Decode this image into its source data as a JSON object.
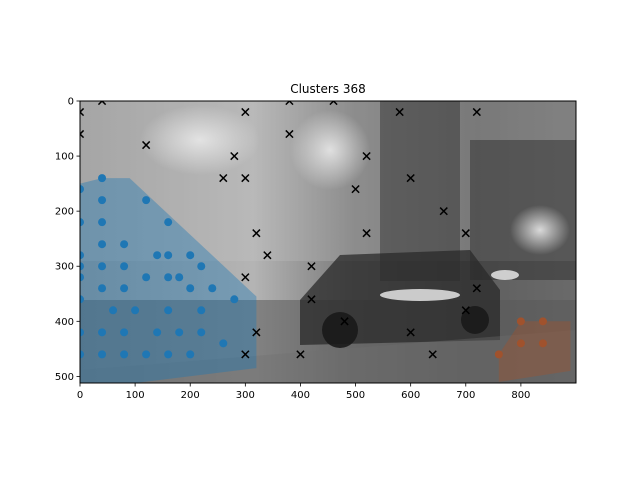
{
  "chart_data": {
    "type": "scatter",
    "title": "Clusters 368",
    "xlabel": "",
    "ylabel": "",
    "xlim": [
      0,
      900
    ],
    "ylim": [
      512,
      0
    ],
    "y_axis_inverted": true,
    "background": "grayscale photo of a city street at night with a car",
    "x_ticks": [
      0,
      100,
      200,
      300,
      400,
      500,
      600,
      700,
      800
    ],
    "y_ticks": [
      0,
      100,
      200,
      300,
      400,
      500
    ],
    "grid": false,
    "legend": "none",
    "series": [
      {
        "marker": "circle",
        "color": "#1f77b4",
        "points": [
          [
            40,
            140
          ],
          [
            0,
            160
          ],
          [
            40,
            180
          ],
          [
            120,
            180
          ],
          [
            0,
            220
          ],
          [
            40,
            220
          ],
          [
            160,
            220
          ],
          [
            40,
            260
          ],
          [
            80,
            260
          ],
          [
            0,
            280
          ],
          [
            140,
            280
          ],
          [
            160,
            280
          ],
          [
            200,
            280
          ],
          [
            0,
            300
          ],
          [
            40,
            300
          ],
          [
            80,
            300
          ],
          [
            220,
            300
          ],
          [
            0,
            320
          ],
          [
            120,
            320
          ],
          [
            160,
            320
          ],
          [
            180,
            320
          ],
          [
            40,
            340
          ],
          [
            80,
            340
          ],
          [
            200,
            340
          ],
          [
            240,
            340
          ],
          [
            0,
            360
          ],
          [
            280,
            360
          ],
          [
            60,
            380
          ],
          [
            100,
            380
          ],
          [
            160,
            380
          ],
          [
            220,
            380
          ],
          [
            0,
            420
          ],
          [
            40,
            420
          ],
          [
            80,
            420
          ],
          [
            140,
            420
          ],
          [
            180,
            420
          ],
          [
            220,
            420
          ],
          [
            260,
            440
          ],
          [
            0,
            460
          ],
          [
            40,
            460
          ],
          [
            80,
            460
          ],
          [
            120,
            460
          ],
          [
            160,
            460
          ],
          [
            200,
            460
          ]
        ],
        "hull": [
          [
            0,
            150
          ],
          [
            40,
            140
          ],
          [
            90,
            140
          ],
          [
            320,
            355
          ],
          [
            320,
            485
          ],
          [
            100,
            512
          ],
          [
            0,
            512
          ]
        ]
      },
      {
        "marker": "circle",
        "color": "#a0522d",
        "points": [
          [
            800,
            400
          ],
          [
            840,
            400
          ],
          [
            800,
            440
          ],
          [
            840,
            440
          ],
          [
            760,
            460
          ]
        ],
        "hull": [
          [
            760,
            460
          ],
          [
            800,
            400
          ],
          [
            890,
            400
          ],
          [
            890,
            490
          ],
          [
            760,
            510
          ]
        ]
      },
      {
        "marker": "x",
        "color": "#000000",
        "points": [
          [
            0,
            20
          ],
          [
            40,
            0
          ],
          [
            380,
            0
          ],
          [
            460,
            0
          ],
          [
            300,
            20
          ],
          [
            580,
            20
          ],
          [
            720,
            20
          ],
          [
            0,
            60
          ],
          [
            380,
            60
          ],
          [
            120,
            80
          ],
          [
            280,
            100
          ],
          [
            520,
            100
          ],
          [
            260,
            140
          ],
          [
            300,
            140
          ],
          [
            600,
            140
          ],
          [
            500,
            160
          ],
          [
            660,
            200
          ],
          [
            320,
            240
          ],
          [
            520,
            240
          ],
          [
            700,
            240
          ],
          [
            340,
            280
          ],
          [
            420,
            300
          ],
          [
            300,
            320
          ],
          [
            720,
            340
          ],
          [
            420,
            360
          ],
          [
            700,
            380
          ],
          [
            480,
            400
          ],
          [
            320,
            420
          ],
          [
            600,
            420
          ],
          [
            300,
            460
          ],
          [
            400,
            460
          ],
          [
            640,
            460
          ]
        ]
      }
    ]
  }
}
